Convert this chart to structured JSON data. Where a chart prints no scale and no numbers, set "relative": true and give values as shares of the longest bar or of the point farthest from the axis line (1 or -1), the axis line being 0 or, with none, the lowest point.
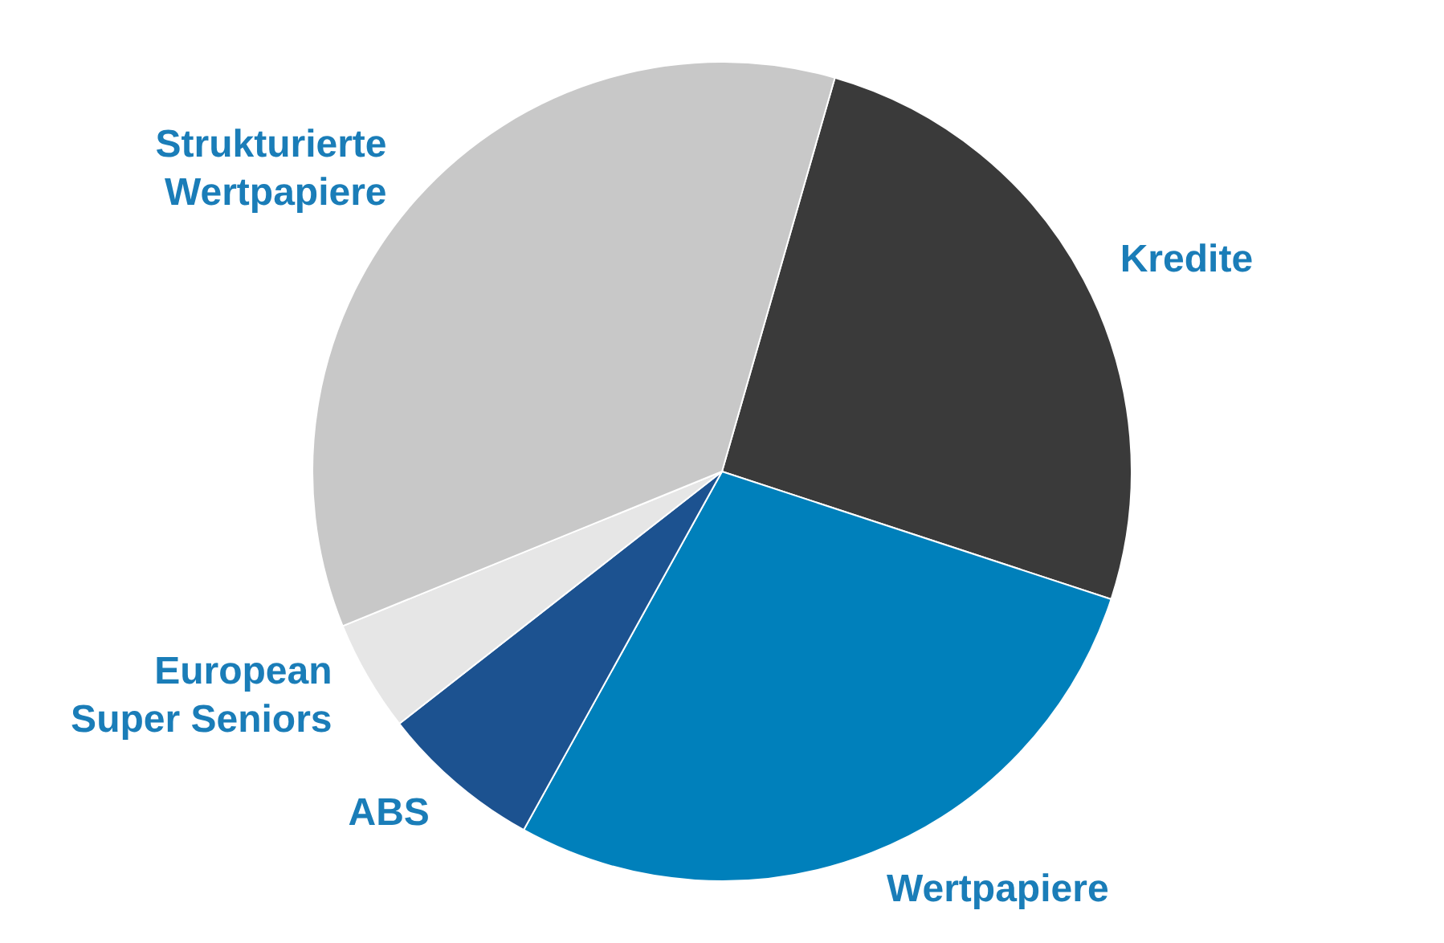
{
  "chart_data": {
    "type": "pie",
    "relative": true,
    "categories": [
      "Kredite",
      "Wertpapiere",
      "ABS",
      "European Super Seniors",
      "Strukturierte Wertpapiere"
    ],
    "values": [
      25.6,
      28.0,
      6.4,
      4.4,
      35.6
    ],
    "colors": [
      "#3a3a3a",
      "#0080bb",
      "#1c5290",
      "#e6e6e6",
      "#c8c8c8"
    ],
    "legend": false
  }
}
